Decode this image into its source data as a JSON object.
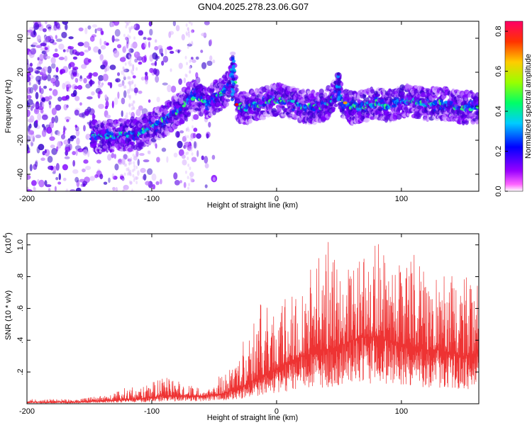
{
  "title": "GN04.2025.278.23.06.G07",
  "chart_data": [
    {
      "type": "heatmap",
      "name": "spectrogram",
      "xlabel": "Height of straight line (km)",
      "ylabel": "Frequency (Hz)",
      "xlim": [
        -200,
        162
      ],
      "ylim": [
        -50,
        50
      ],
      "xticks": [
        -200,
        -100,
        0,
        100
      ],
      "yticks": [
        -40,
        -20,
        0,
        20,
        40
      ],
      "colorbar": {
        "label": "Normalized spectral amplitude",
        "range": [
          0,
          0.85
        ],
        "ticks": [
          0.0,
          0.2,
          0.4,
          0.6,
          0.8
        ],
        "colormap": [
          "#ffffff",
          "#ff00ff",
          "#6600cc",
          "#0000ff",
          "#00ccff",
          "#00ff66",
          "#ccff00",
          "#ff9900",
          "#ff0000"
        ]
      },
      "ridge": {
        "x": [
          -145,
          -130,
          -120,
          -110,
          -100,
          -90,
          -80,
          -70,
          -65,
          -60,
          -55,
          -50,
          -45,
          -40,
          -37,
          -35,
          -32,
          -30,
          -25,
          -20,
          -10,
          0,
          10,
          20,
          30,
          40,
          45,
          50,
          52,
          55,
          60,
          70,
          80,
          90,
          100,
          110,
          120,
          130,
          140,
          150,
          160
        ],
        "y": [
          -18,
          -17,
          -17,
          -16,
          -12,
          -8,
          -3,
          4,
          7,
          4,
          2,
          5,
          7,
          10,
          14,
          25,
          2,
          0,
          -1,
          0,
          2,
          4,
          3,
          0,
          -1,
          1,
          4,
          12,
          3,
          2,
          -1,
          0,
          2,
          0,
          3,
          3,
          1,
          2,
          1,
          -1,
          0
        ]
      },
      "noise_region_km": [
        -200,
        -60
      ]
    },
    {
      "type": "line",
      "name": "snr",
      "xlabel": "Height of straight line (km)",
      "ylabel": "SNR (10 * v/v)",
      "scale_label": "(x10",
      "scale_exponent": "4",
      "scale_close": ")",
      "xlim": [
        -200,
        162
      ],
      "ylim": [
        0,
        1.07
      ],
      "xticks": [
        -200,
        -100,
        0,
        100
      ],
      "yticks": [
        0.2,
        0.4,
        0.6,
        0.8,
        1.0
      ],
      "color": "#ee3333",
      "envelope": {
        "x": [
          -200,
          -160,
          -140,
          -130,
          -120,
          -110,
          -100,
          -90,
          -80,
          -70,
          -60,
          -50,
          -45,
          -40,
          -35,
          -30,
          -25,
          -20,
          -15,
          -10,
          -5,
          0,
          10,
          20,
          30,
          40,
          50,
          60,
          70,
          80,
          90,
          100,
          110,
          120,
          130,
          140,
          150,
          162
        ],
        "base": [
          0.01,
          0.01,
          0.02,
          0.02,
          0.03,
          0.03,
          0.04,
          0.05,
          0.05,
          0.05,
          0.05,
          0.06,
          0.06,
          0.07,
          0.09,
          0.1,
          0.12,
          0.14,
          0.16,
          0.18,
          0.2,
          0.22,
          0.26,
          0.3,
          0.32,
          0.34,
          0.36,
          0.4,
          0.42,
          0.42,
          0.4,
          0.38,
          0.36,
          0.34,
          0.34,
          0.32,
          0.3,
          0.32
        ],
        "peak": [
          0.03,
          0.03,
          0.05,
          0.07,
          0.12,
          0.1,
          0.14,
          0.17,
          0.15,
          0.12,
          0.1,
          0.12,
          0.2,
          0.22,
          0.25,
          0.32,
          0.45,
          0.58,
          0.65,
          0.6,
          0.65,
          0.6,
          0.72,
          0.8,
          0.95,
          1.05,
          0.92,
          0.86,
          0.95,
          1.04,
          0.88,
          0.92,
          1.0,
          0.82,
          0.78,
          0.85,
          0.82,
          0.78
        ]
      }
    }
  ]
}
